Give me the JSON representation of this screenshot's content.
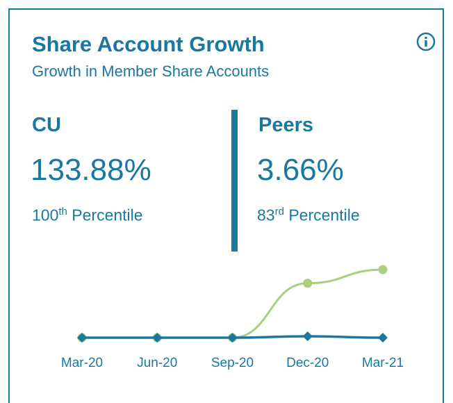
{
  "header": {
    "title": "Share Account Growth",
    "subtitle": "Growth in Member Share Accounts"
  },
  "cu": {
    "label": "CU",
    "value": "133.88%",
    "percentile_rank": "100",
    "percentile_suffix": "th",
    "percentile_label": "Percentile"
  },
  "peers": {
    "label": "Peers",
    "value": "3.66%",
    "percentile_rank": "83",
    "percentile_suffix": "rd",
    "percentile_label": "Percentile"
  },
  "chart_data": {
    "type": "line",
    "categories": [
      "Mar-20",
      "Jun-20",
      "Sep-20",
      "Dec-20",
      "Mar-21"
    ],
    "series": [
      {
        "name": "CU",
        "color": "#a9cf7f",
        "values": [
          0,
          0,
          0,
          80,
          100
        ]
      },
      {
        "name": "Peers",
        "color": "#1a78a0",
        "values": [
          0,
          0,
          0,
          2,
          0
        ]
      }
    ],
    "ylim": [
      0,
      100
    ]
  }
}
